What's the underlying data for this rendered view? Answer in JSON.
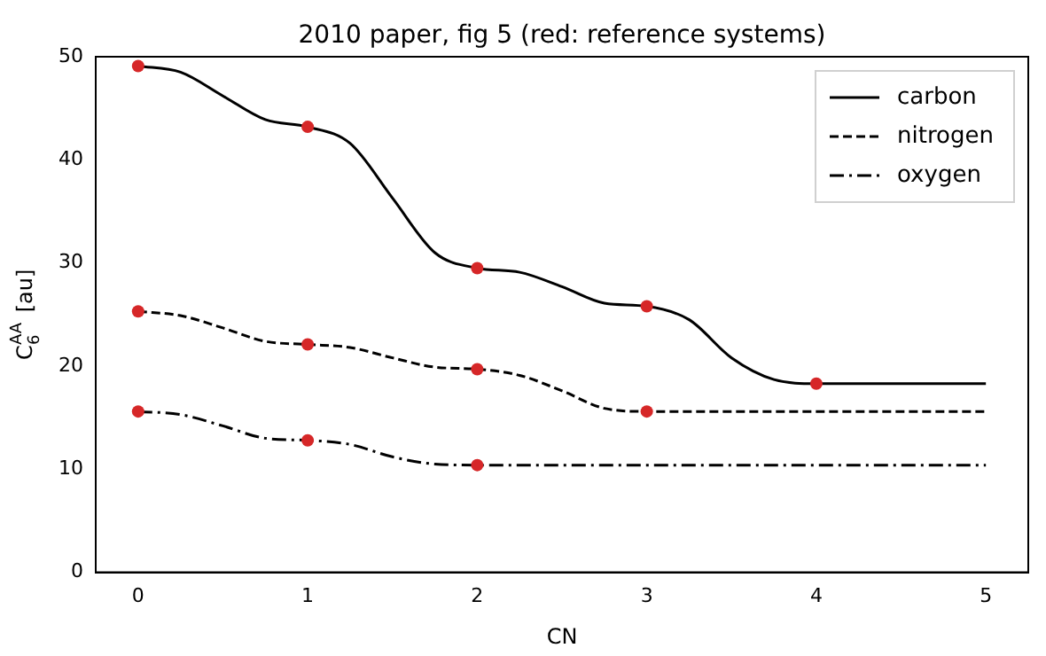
{
  "chart_data": {
    "type": "line",
    "title": "2010 paper, fig 5 (red: reference systems)",
    "xlabel": "CN",
    "ylabel": "C$_{6}$$^{AA}$ [au]",
    "xlim": [
      -0.25,
      5.25
    ],
    "xticks": [
      0,
      1,
      2,
      3,
      4,
      5
    ],
    "ylim": [
      0,
      50
    ],
    "yticks": [
      0,
      10,
      20,
      30,
      40,
      50
    ],
    "grid": false,
    "legend": "top right",
    "marker": "none",
    "series": [
      {
        "name": "carbon",
        "color": "#000000",
        "line_style": "solid",
        "x": [
          0,
          0.25,
          0.5,
          0.75,
          1,
          1.25,
          1.5,
          1.75,
          2,
          2.25,
          2.5,
          2.75,
          3,
          3.25,
          3.5,
          3.75,
          4,
          4.5,
          5
        ],
        "values": [
          49.1,
          48.5,
          46.2,
          43.9,
          43.2,
          41.6,
          36.3,
          31.0,
          29.5,
          29.1,
          27.7,
          26.1,
          25.8,
          24.5,
          20.8,
          18.7,
          18.3,
          18.3,
          18.3
        ]
      },
      {
        "name": "nitrogen",
        "color": "#000000",
        "line_style": "dashed",
        "x": [
          0,
          0.25,
          0.5,
          0.75,
          1,
          1.25,
          1.5,
          1.75,
          2,
          2.25,
          2.5,
          2.75,
          3,
          4,
          5
        ],
        "values": [
          25.3,
          24.9,
          23.7,
          22.4,
          22.1,
          21.8,
          20.8,
          19.9,
          19.7,
          19.1,
          17.6,
          15.9,
          15.6,
          15.6,
          15.6
        ]
      },
      {
        "name": "oxygen",
        "color": "#000000",
        "line_style": "dashdot",
        "x": [
          0,
          0.25,
          0.5,
          0.75,
          1,
          1.25,
          1.5,
          1.75,
          2,
          3,
          4,
          5
        ],
        "values": [
          15.6,
          15.3,
          14.2,
          13.0,
          12.8,
          12.4,
          11.2,
          10.5,
          10.4,
          10.4,
          10.4,
          10.4
        ]
      },
      {
        "type": "scatter",
        "color": "#d62728",
        "marker": "circle",
        "x": [
          0,
          1,
          2,
          3,
          4,
          0,
          1,
          2,
          3,
          0,
          1,
          2
        ],
        "values": [
          49.1,
          43.2,
          29.5,
          25.8,
          18.3,
          25.3,
          22.1,
          19.7,
          15.6,
          15.6,
          12.8,
          10.4
        ]
      }
    ]
  }
}
